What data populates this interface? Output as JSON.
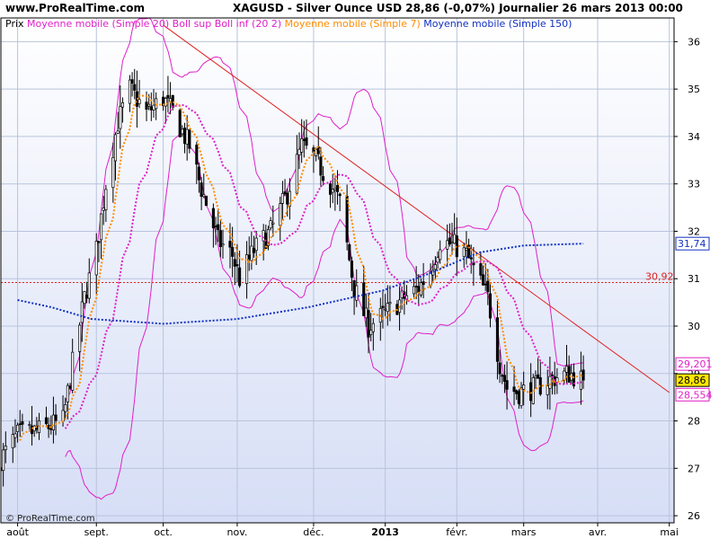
{
  "header": {
    "site": "www.ProRealTime.com",
    "instrument_line": "XAGUSD - Silver Ounce USD    28,86 (-0,07%)    Journalier  26 mars 2013 00:00"
  },
  "legend": {
    "items": [
      {
        "label": "Prix",
        "color": "#000000"
      },
      {
        "label": "Moyenne mobile (Simple 20)",
        "color": "#e020c8"
      },
      {
        "label": "Boll sup Boll inf (20 2)",
        "color": "#e020c8"
      },
      {
        "label": "Moyenne mobile (Simple 7)",
        "color": "#ff8c00"
      },
      {
        "label": "Moyenne mobile (Simple 150)",
        "color": "#1030c0"
      }
    ]
  },
  "watermark": "© ProRealTime.com",
  "price_badges": {
    "sma150": "31,74",
    "hline": "30,92",
    "boll_upper": "29,201",
    "last": "28,86",
    "boll_lower": "28,554"
  },
  "colors": {
    "bg_top": "#ffffff",
    "bg_bottom": "#d6def6",
    "grid": "#b8c4dc",
    "candle": "#000000",
    "bollinger": "#e020c8",
    "sma20": "#e020c8",
    "sma7": "#ff8c00",
    "sma150": "#1030c0",
    "trendline": "#e02020",
    "hline": "#e02020"
  },
  "chart_data": {
    "type": "candlestick",
    "y_axis": {
      "min": 25.85,
      "max": 36.5,
      "ticks": [
        26,
        27,
        28,
        29,
        30,
        31,
        32,
        33,
        34,
        35,
        36
      ],
      "label_format": "integer"
    },
    "x_axis": {
      "start_date": "2012-07-25",
      "end_date": "2013-05-03",
      "ticks": [
        {
          "label": "août",
          "date": "2012-08-01"
        },
        {
          "label": "sept.",
          "date": "2012-09-03"
        },
        {
          "label": "oct.",
          "date": "2012-10-01"
        },
        {
          "label": "nov.",
          "date": "2012-11-01"
        },
        {
          "label": "déc.",
          "date": "2012-12-03"
        },
        {
          "label": "2013",
          "date": "2013-01-02",
          "bold": true
        },
        {
          "label": "févr.",
          "date": "2013-02-01"
        },
        {
          "label": "mars",
          "date": "2013-03-01"
        },
        {
          "label": "avr.",
          "date": "2013-04-01"
        },
        {
          "label": "mai",
          "date": "2013-05-01"
        }
      ]
    },
    "close_waypoints": [
      [
        "2012-07-25",
        27.2
      ],
      [
        "2012-08-01",
        27.7
      ],
      [
        "2012-08-10",
        27.8
      ],
      [
        "2012-08-20",
        28.0
      ],
      [
        "2012-08-24",
        29.2
      ],
      [
        "2012-08-29",
        30.6
      ],
      [
        "2012-09-03",
        31.6
      ],
      [
        "2012-09-07",
        33.0
      ],
      [
        "2012-09-12",
        34.3
      ],
      [
        "2012-09-17",
        35.0
      ],
      [
        "2012-09-24",
        34.5
      ],
      [
        "2012-10-01",
        34.8
      ],
      [
        "2012-10-05",
        34.5
      ],
      [
        "2012-10-12",
        33.8
      ],
      [
        "2012-10-17",
        32.9
      ],
      [
        "2012-10-24",
        31.8
      ],
      [
        "2012-10-30",
        31.5
      ],
      [
        "2012-11-02",
        31.0
      ],
      [
        "2012-11-08",
        31.6
      ],
      [
        "2012-11-15",
        32.0
      ],
      [
        "2012-11-22",
        32.8
      ],
      [
        "2012-11-28",
        33.8
      ],
      [
        "2012-12-04",
        33.5
      ],
      [
        "2012-12-10",
        33.0
      ],
      [
        "2012-12-14",
        32.6
      ],
      [
        "2012-12-20",
        30.8
      ],
      [
        "2012-12-26",
        30.0
      ],
      [
        "2013-01-03",
        30.3
      ],
      [
        "2013-01-10",
        30.6
      ],
      [
        "2013-01-16",
        30.8
      ],
      [
        "2013-01-21",
        31.2
      ],
      [
        "2013-01-25",
        31.8
      ],
      [
        "2013-01-31",
        31.7
      ],
      [
        "2013-02-05",
        31.5
      ],
      [
        "2013-02-10",
        31.0
      ],
      [
        "2013-02-14",
        30.6
      ],
      [
        "2013-02-19",
        29.2
      ],
      [
        "2013-02-22",
        28.7
      ],
      [
        "2013-02-27",
        28.6
      ],
      [
        "2013-03-06",
        28.7
      ],
      [
        "2013-03-13",
        28.9
      ],
      [
        "2013-03-20",
        29.0
      ],
      [
        "2013-03-26",
        28.86
      ]
    ],
    "sma150_waypoints": [
      [
        "2012-08-01",
        30.55
      ],
      [
        "2012-08-15",
        30.4
      ],
      [
        "2012-09-01",
        30.15
      ],
      [
        "2012-10-01",
        30.05
      ],
      [
        "2012-11-01",
        30.15
      ],
      [
        "2012-12-01",
        30.4
      ],
      [
        "2013-01-01",
        30.75
      ],
      [
        "2013-01-20",
        31.1
      ],
      [
        "2013-02-10",
        31.55
      ],
      [
        "2013-03-01",
        31.7
      ],
      [
        "2013-03-26",
        31.74
      ]
    ],
    "trendline": {
      "from": [
        "2012-10-01",
        36.35
      ],
      "to": [
        "2013-05-01",
        28.6
      ]
    },
    "hline_value": 30.92
  }
}
